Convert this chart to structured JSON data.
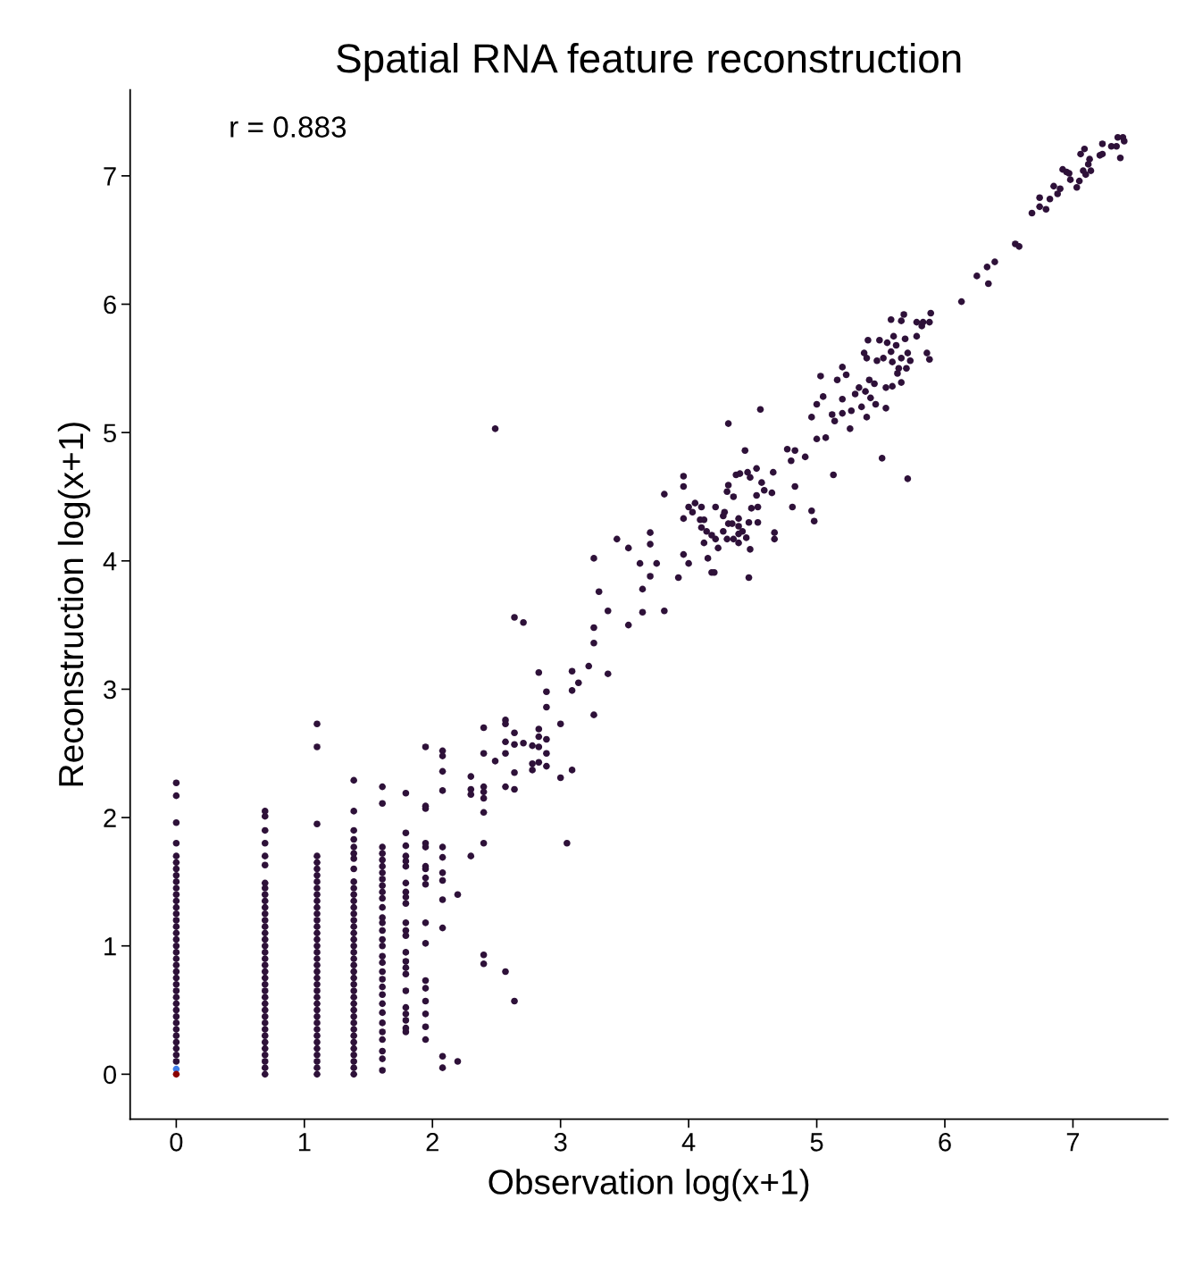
{
  "chart_data": {
    "type": "scatter",
    "title": "Spatial RNA feature reconstruction",
    "xlabel": "Observation log(x+1)",
    "ylabel": "Reconstruction log(x+1)",
    "annotations": [
      "r = 0.883"
    ],
    "xlim": [
      -0.36,
      7.74
    ],
    "ylim": [
      -0.35,
      7.67
    ],
    "xticks": [
      0,
      1,
      2,
      3,
      4,
      5,
      6,
      7
    ],
    "yticks": [
      0,
      1,
      2,
      3,
      4,
      5,
      6,
      7
    ],
    "marker": "circle",
    "series": [
      {
        "color": "#2e1139",
        "x": [
          0,
          0,
          0,
          0,
          0,
          0,
          0,
          0,
          0,
          0,
          0,
          0,
          0,
          0,
          0,
          0,
          0,
          0,
          0,
          0,
          0,
          0,
          0,
          0,
          0,
          0,
          0,
          0,
          0,
          0,
          0,
          0,
          0,
          0,
          0,
          0,
          0
        ],
        "values": [
          0.1,
          0.15,
          0.2,
          0.25,
          0.3,
          0.35,
          0.4,
          0.45,
          0.5,
          0.55,
          0.6,
          0.65,
          0.7,
          0.75,
          0.8,
          0.85,
          0.9,
          0.95,
          1.0,
          1.05,
          1.1,
          1.15,
          1.2,
          1.25,
          1.3,
          1.35,
          1.4,
          1.45,
          1.5,
          1.55,
          1.6,
          1.65,
          1.7,
          1.8,
          1.96,
          2.17,
          2.27
        ]
      },
      {
        "color": "#2e1139",
        "x": [
          0.693,
          0.693,
          0.693,
          0.693,
          0.693,
          0.693,
          0.693,
          0.693,
          0.693,
          0.693,
          0.693,
          0.693,
          0.693,
          0.693,
          0.693,
          0.693,
          0.693,
          0.693,
          0.693,
          0.693,
          0.693,
          0.693,
          0.693,
          0.693,
          0.693,
          0.693,
          0.693,
          0.693,
          0.693,
          0.693,
          0.693,
          0.693,
          0.693,
          0.693,
          0.693,
          0.693,
          0.693
        ],
        "values": [
          0,
          0.05,
          0.1,
          0.15,
          0.2,
          0.25,
          0.3,
          0.35,
          0.4,
          0.45,
          0.5,
          0.55,
          0.6,
          0.65,
          0.7,
          0.75,
          0.8,
          0.85,
          0.9,
          0.95,
          1.0,
          1.05,
          1.1,
          1.15,
          1.2,
          1.25,
          1.3,
          1.35,
          1.4,
          1.45,
          1.49,
          1.63,
          1.7,
          1.8,
          1.9,
          2.01,
          2.05
        ]
      },
      {
        "color": "#2e1139",
        "x": [
          1.099,
          1.099,
          1.099,
          1.099,
          1.099,
          1.099,
          1.099,
          1.099,
          1.099,
          1.099,
          1.099,
          1.099,
          1.099,
          1.099,
          1.099,
          1.099,
          1.099,
          1.099,
          1.099,
          1.099,
          1.099,
          1.099,
          1.099,
          1.099,
          1.099,
          1.099,
          1.099,
          1.099,
          1.099,
          1.099,
          1.099,
          1.099,
          1.099,
          1.099,
          1.099,
          1.099,
          1.099,
          1.099
        ],
        "values": [
          0,
          0.05,
          0.1,
          0.15,
          0.2,
          0.25,
          0.3,
          0.35,
          0.4,
          0.45,
          0.5,
          0.55,
          0.6,
          0.65,
          0.7,
          0.75,
          0.8,
          0.85,
          0.9,
          0.95,
          1.0,
          1.05,
          1.1,
          1.15,
          1.2,
          1.25,
          1.3,
          1.35,
          1.4,
          1.45,
          1.5,
          1.55,
          1.6,
          1.65,
          1.7,
          1.95,
          2.55,
          2.73
        ]
      },
      {
        "color": "#2e1139",
        "x": [
          1.386,
          1.386,
          1.386,
          1.386,
          1.386,
          1.386,
          1.386,
          1.386,
          1.386,
          1.386,
          1.386,
          1.386,
          1.386,
          1.386,
          1.386,
          1.386,
          1.386,
          1.386,
          1.386,
          1.386,
          1.386,
          1.386,
          1.386,
          1.386,
          1.386,
          1.386,
          1.386,
          1.386,
          1.386,
          1.386,
          1.386,
          1.386,
          1.386,
          1.386,
          1.386,
          1.386,
          1.386,
          1.386,
          1.386
        ],
        "values": [
          0,
          0.05,
          0.1,
          0.15,
          0.2,
          0.25,
          0.3,
          0.35,
          0.4,
          0.45,
          0.5,
          0.55,
          0.6,
          0.65,
          0.7,
          0.75,
          0.8,
          0.85,
          0.9,
          0.95,
          1.0,
          1.05,
          1.1,
          1.15,
          1.2,
          1.25,
          1.3,
          1.35,
          1.4,
          1.45,
          1.5,
          1.6,
          1.68,
          1.72,
          1.77,
          1.83,
          1.9,
          2.05,
          2.29
        ]
      },
      {
        "color": "#2e1139",
        "x": [
          1.609,
          1.609,
          1.609,
          1.609,
          1.609,
          1.609,
          1.609,
          1.609,
          1.609,
          1.609,
          1.609,
          1.609,
          1.609,
          1.609,
          1.609,
          1.609,
          1.609,
          1.609,
          1.609,
          1.609,
          1.609,
          1.609,
          1.609,
          1.609,
          1.609,
          1.609,
          1.609,
          1.609,
          1.609,
          1.609,
          1.609
        ],
        "values": [
          2.24,
          2.11,
          1.77,
          1.72,
          1.67,
          1.62,
          1.57,
          1.52,
          1.47,
          1.42,
          1.37,
          1.3,
          1.22,
          1.18,
          1.12,
          1.05,
          1.0,
          0.92,
          0.87,
          0.8,
          0.74,
          0.68,
          0.62,
          0.55,
          0.48,
          0.4,
          0.33,
          0.27,
          0.18,
          0.12,
          0.03
        ]
      },
      {
        "color": "#2e1139",
        "x": [
          1.792,
          1.792,
          1.792,
          1.792,
          1.792,
          1.792,
          1.792,
          1.792,
          1.792,
          1.792,
          1.792,
          1.792,
          1.792,
          1.792,
          1.792,
          1.792,
          1.792,
          1.792,
          1.792,
          1.792,
          1.792,
          1.792,
          1.792
        ],
        "values": [
          2.19,
          1.88,
          1.78,
          1.7,
          1.66,
          1.62,
          1.49,
          1.42,
          1.38,
          1.33,
          1.18,
          1.12,
          1.08,
          0.95,
          0.88,
          0.83,
          0.78,
          0.65,
          0.52,
          0.47,
          0.42,
          0.36,
          0.33
        ]
      },
      {
        "color": "#2e1139",
        "x": [
          1.946,
          1.946,
          1.946,
          1.946,
          1.946,
          1.946,
          1.946,
          1.946,
          1.946,
          1.946,
          1.946,
          1.946,
          1.946,
          1.946,
          1.946,
          1.946,
          1.946
        ],
        "values": [
          2.55,
          2.09,
          2.07,
          1.8,
          1.77,
          1.62,
          1.6,
          1.53,
          1.48,
          1.18,
          1.02,
          0.73,
          0.67,
          0.57,
          0.47,
          0.37,
          0.27
        ]
      },
      {
        "color": "#2e1139",
        "x": [
          2.079,
          2.079,
          2.079,
          2.079,
          2.079,
          2.079,
          2.079,
          2.079,
          2.079,
          2.079,
          2.079,
          2.079
        ],
        "values": [
          2.52,
          2.48,
          2.36,
          2.21,
          1.77,
          1.69,
          1.57,
          1.51,
          1.36,
          1.14,
          0.14,
          0.05
        ]
      },
      {
        "color": "#2e1139",
        "x": [
          2.197,
          2.197
        ],
        "values": [
          1.4,
          0.1
        ]
      },
      {
        "color": "#2e1139",
        "x": [
          2.3,
          2.3,
          2.3,
          2.3,
          2.4,
          2.4,
          2.4,
          2.4,
          2.4,
          2.4,
          2.4,
          2.4,
          2.4,
          2.49,
          2.57,
          2.57,
          2.57,
          2.57,
          2.57,
          2.57,
          2.64,
          2.71,
          2.64,
          2.64,
          2.64,
          2.64,
          2.64,
          2.71,
          2.78,
          2.78,
          2.78,
          2.83,
          2.83,
          2.83,
          2.83,
          2.83,
          2.89,
          2.89,
          2.89,
          2.89,
          2.89,
          3.0,
          3.0,
          3.05,
          3.09,
          3.09,
          3.09,
          3.14,
          3.22,
          3.26,
          3.26,
          3.26,
          3.3,
          3.37,
          3.37,
          3.53,
          2.49
        ],
        "values": [
          2.32,
          2.22,
          2.18,
          1.7,
          2.7,
          2.5,
          2.24,
          2.2,
          2.15,
          2.04,
          1.8,
          0.93,
          0.86,
          2.44,
          2.76,
          2.73,
          2.59,
          2.5,
          2.24,
          0.8,
          3.56,
          3.52,
          2.66,
          2.57,
          2.35,
          2.22,
          0.57,
          2.58,
          2.56,
          2.42,
          2.37,
          3.13,
          2.69,
          2.63,
          2.55,
          2.43,
          2.98,
          2.86,
          2.61,
          2.5,
          2.4,
          2.73,
          2.31,
          1.8,
          3.14,
          2.99,
          2.37,
          3.05,
          3.18,
          3.48,
          3.36,
          2.8,
          3.76,
          3.61,
          3.12,
          3.5,
          5.03
        ]
      },
      {
        "color": "#2e1139",
        "x": [
          3.26,
          3.44,
          3.53,
          3.62,
          3.64,
          3.64,
          3.7,
          3.7,
          3.7,
          3.75,
          3.81,
          3.81,
          3.92,
          3.96,
          3.96,
          3.96,
          3.96,
          4.0,
          4.0,
          4.05,
          4.1,
          4.03,
          4.09,
          4.12,
          4.1,
          4.12,
          4.15,
          4.14,
          4.18,
          4.18,
          4.2,
          4.21,
          4.21,
          4.23,
          4.27,
          4.28,
          4.27,
          4.3,
          4.31,
          4.3,
          4.31,
          4.31,
          4.35,
          4.34,
          4.35,
          4.37,
          4.4,
          4.39,
          4.39,
          4.39,
          4.39,
          4.42,
          4.44,
          4.46,
          4.45,
          4.47,
          4.47,
          4.48,
          4.48,
          4.49,
          4.53,
          4.53,
          4.54,
          4.54,
          4.56,
          4.57,
          4.59,
          4.65,
          4.66,
          4.67,
          4.67,
          4.77,
          4.8,
          4.81,
          4.83,
          4.83,
          4.91,
          4.96,
          4.98,
          4.96,
          5.0,
          5.0,
          5.03,
          5.05,
          5.07,
          5.13,
          5.12,
          5.14,
          5.16,
          5.2,
          5.2,
          5.2,
          5.23,
          5.26,
          5.27,
          5.3,
          5.33,
          5.35,
          5.37,
          5.38,
          5.39,
          5.4,
          5.41,
          5.42,
          5.39,
          5.45,
          5.46,
          5.47,
          5.49,
          5.51,
          5.52,
          5.54,
          5.54,
          5.55,
          5.58,
          5.58,
          5.59,
          5.59,
          5.6,
          5.62,
          5.63,
          5.64,
          5.66,
          5.66,
          5.66,
          5.68,
          5.69,
          5.7,
          5.71,
          5.71,
          5.73,
          5.78,
          5.78,
          5.82,
          5.83,
          5.86,
          5.88,
          5.88,
          5.89,
          6.13,
          6.25,
          6.33,
          6.34,
          6.39,
          6.55,
          6.58,
          6.68,
          6.74,
          6.74,
          6.79,
          6.82,
          6.85,
          6.88,
          6.9,
          6.92,
          6.95,
          6.97,
          6.98,
          7.03,
          7.05,
          7.06,
          7.09,
          7.08,
          7.1,
          7.12,
          7.13,
          7.14,
          7.21,
          7.23,
          7.23,
          7.3,
          7.34,
          7.35,
          7.39,
          7.4,
          7.37
        ],
        "values": [
          4.02,
          4.17,
          4.1,
          3.98,
          3.78,
          3.6,
          4.22,
          4.13,
          3.88,
          3.98,
          4.52,
          3.61,
          3.87,
          4.66,
          4.58,
          4.33,
          4.05,
          3.98,
          4.42,
          4.45,
          4.42,
          4.38,
          4.32,
          4.32,
          4.26,
          4.14,
          4.02,
          4.23,
          4.2,
          3.91,
          3.91,
          4.17,
          4.42,
          4.1,
          4.35,
          4.38,
          4.23,
          4.17,
          4.29,
          4.54,
          4.59,
          5.07,
          4.5,
          4.29,
          4.17,
          4.67,
          4.68,
          4.33,
          4.27,
          4.21,
          4.14,
          4.23,
          4.86,
          4.69,
          4.18,
          4.3,
          3.87,
          4.09,
          4.65,
          4.41,
          4.72,
          4.51,
          4.42,
          4.3,
          5.18,
          4.61,
          4.55,
          4.53,
          4.69,
          4.22,
          4.17,
          4.87,
          4.78,
          4.42,
          4.58,
          4.86,
          4.81,
          4.39,
          4.31,
          5.12,
          4.95,
          5.22,
          5.44,
          5.28,
          4.96,
          4.67,
          5.14,
          5.09,
          5.41,
          5.51,
          5.26,
          5.15,
          5.45,
          5.03,
          5.17,
          5.3,
          5.35,
          5.2,
          5.62,
          5.32,
          5.58,
          5.72,
          5.41,
          5.27,
          5.12,
          5.38,
          5.22,
          5.56,
          5.72,
          4.8,
          5.58,
          5.35,
          5.19,
          5.7,
          5.63,
          5.88,
          5.55,
          5.36,
          5.75,
          5.68,
          5.46,
          5.5,
          5.39,
          5.58,
          5.87,
          5.92,
          5.73,
          5.5,
          5.62,
          4.64,
          5.56,
          5.75,
          5.86,
          5.83,
          5.86,
          5.62,
          5.57,
          5.86,
          5.93,
          6.02,
          6.22,
          6.29,
          6.16,
          6.33,
          6.47,
          6.45,
          6.71,
          6.83,
          6.76,
          6.74,
          6.82,
          6.92,
          6.86,
          6.9,
          7.05,
          7.03,
          7.02,
          6.97,
          6.91,
          6.96,
          7.17,
          7.21,
          7.04,
          7.01,
          7.09,
          7.13,
          7.04,
          7.16,
          7.17,
          7.25,
          7.23,
          7.23,
          7.3,
          7.3,
          7.27,
          7.14
        ]
      },
      {
        "color": "#3d7be8",
        "x": [
          0
        ],
        "values": [
          0.04
        ]
      },
      {
        "color": "#8b0000",
        "x": [
          0
        ],
        "values": [
          0
        ]
      }
    ]
  }
}
